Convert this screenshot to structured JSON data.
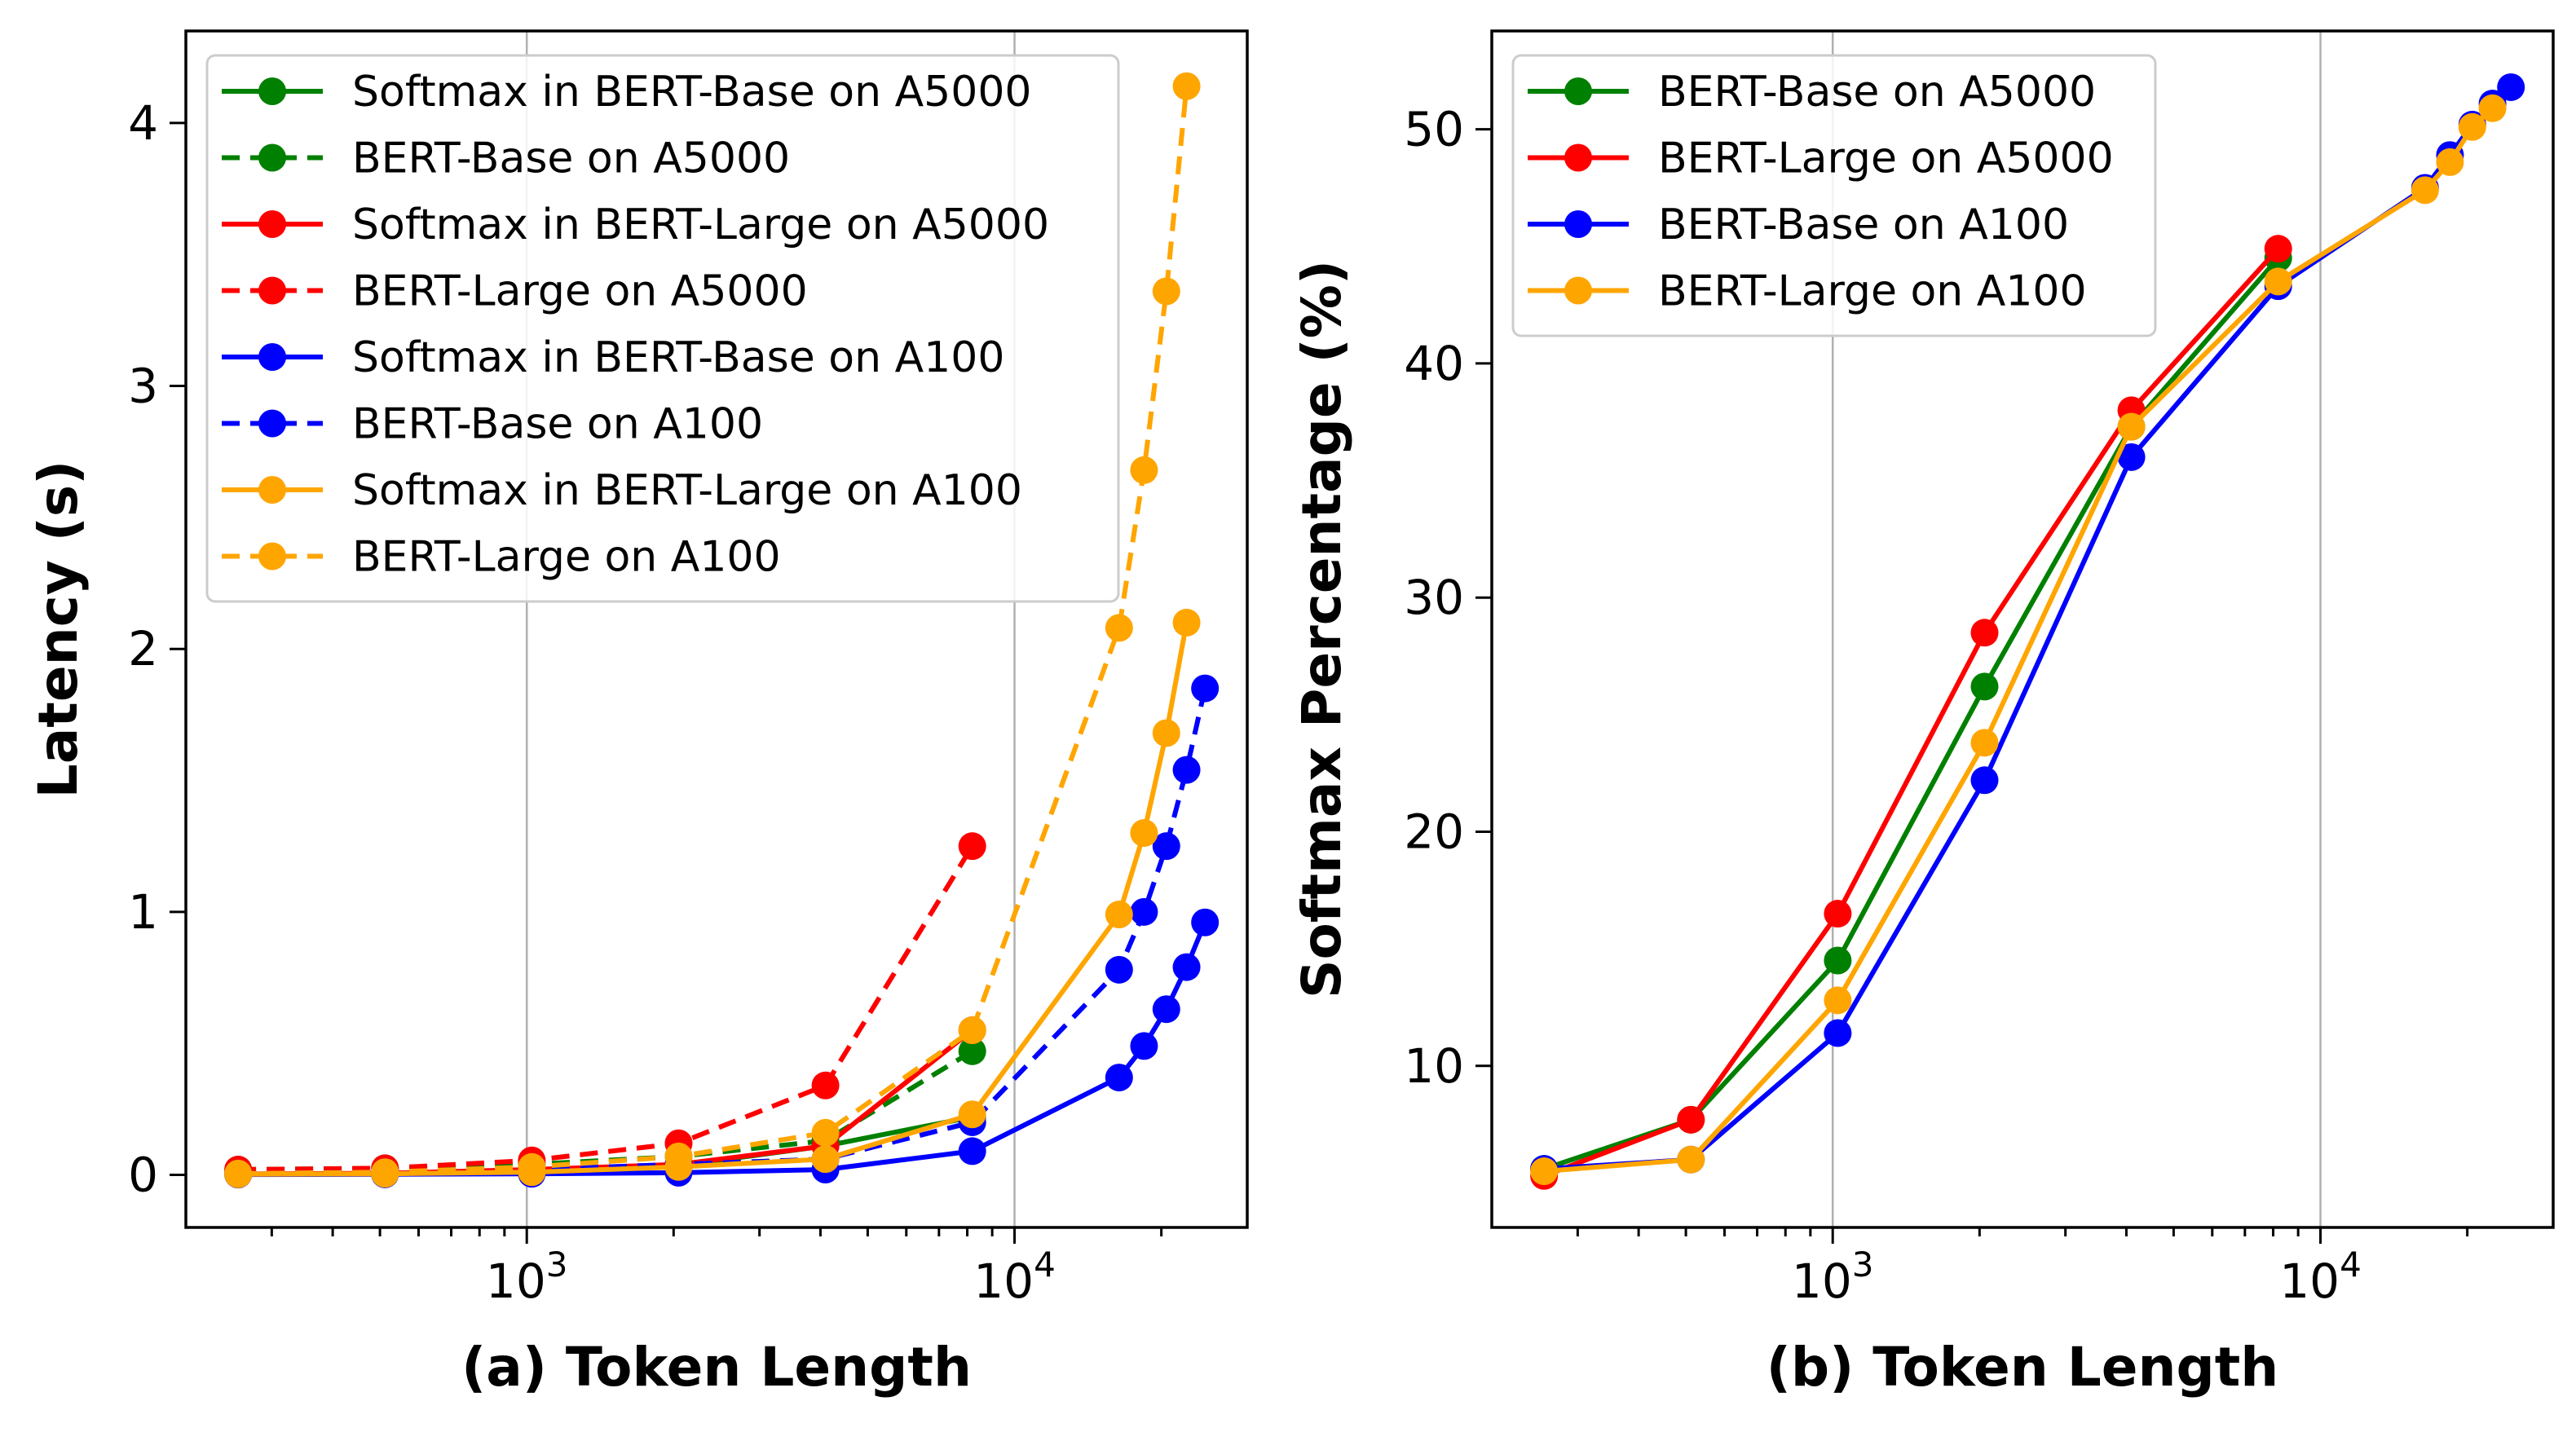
{
  "chart_data": [
    {
      "type": "line",
      "xlabel": "(a) Token Length",
      "ylabel": "Latency (s)",
      "xscale": "log",
      "xlim": [
        200,
        30000
      ],
      "ylim": [
        -0.2,
        4.35
      ],
      "yticks": [
        0,
        1,
        2,
        3,
        4
      ],
      "ytick_labels": [
        "0",
        "1",
        "2",
        "3",
        "4"
      ],
      "xticks_major": [
        1000,
        10000
      ],
      "xtick_labels": [
        {
          "base": "10",
          "exp": "3"
        },
        {
          "base": "10",
          "exp": "4"
        }
      ],
      "grid": "x-major",
      "legend_placement": "upper-left",
      "series": [
        {
          "name": "Softmax in BERT-Base on A5000",
          "color": "#008000",
          "style": "solid",
          "x": [
            256,
            512,
            1024,
            2048,
            4096,
            8192
          ],
          "y": [
            0.002,
            0.004,
            0.012,
            0.035,
            0.11,
            0.22
          ]
        },
        {
          "name": "BERT-Base on A5000",
          "color": "#008000",
          "style": "dashed",
          "x": [
            256,
            512,
            1024,
            2048,
            4096,
            8192
          ],
          "y": [
            0.02,
            0.025,
            0.04,
            0.07,
            0.13,
            0.47
          ]
        },
        {
          "name": "Softmax in BERT-Large on A5000",
          "color": "#ff0000",
          "style": "solid",
          "x": [
            256,
            512,
            1024,
            2048,
            4096,
            8192
          ],
          "y": [
            0.003,
            0.006,
            0.02,
            0.04,
            0.11,
            0.55
          ]
        },
        {
          "name": "BERT-Large on A5000",
          "color": "#ff0000",
          "style": "dashed",
          "x": [
            256,
            512,
            1024,
            2048,
            4096,
            8192
          ],
          "y": [
            0.02,
            0.025,
            0.055,
            0.12,
            0.34,
            1.25
          ]
        },
        {
          "name": "Softmax in BERT-Base on A100",
          "color": "#0000ff",
          "style": "solid",
          "x": [
            256,
            512,
            1024,
            2048,
            4096,
            8192,
            16384,
            18432,
            20480,
            22528,
            24576
          ],
          "y": [
            0.001,
            0.002,
            0.004,
            0.008,
            0.02,
            0.09,
            0.37,
            0.49,
            0.63,
            0.79,
            0.96
          ]
        },
        {
          "name": "BERT-Base on A100",
          "color": "#0000ff",
          "style": "dashed",
          "x": [
            256,
            512,
            1024,
            2048,
            4096,
            8192,
            16384,
            18432,
            20480,
            22528,
            24576
          ],
          "y": [
            0.005,
            0.01,
            0.02,
            0.04,
            0.06,
            0.2,
            0.78,
            1.0,
            1.25,
            1.54,
            1.85
          ]
        },
        {
          "name": "Softmax in BERT-Large on A100",
          "color": "#ffa500",
          "style": "solid",
          "x": [
            256,
            512,
            1024,
            2048,
            4096,
            8192,
            16384,
            18432,
            20480,
            22528
          ],
          "y": [
            0.002,
            0.004,
            0.01,
            0.03,
            0.06,
            0.23,
            0.99,
            1.3,
            1.68,
            2.1
          ]
        },
        {
          "name": "BERT-Large on A100",
          "color": "#ffa500",
          "style": "dashed",
          "x": [
            256,
            512,
            1024,
            2048,
            4096,
            8192,
            16384,
            18432,
            20480,
            22528
          ],
          "y": [
            0.005,
            0.01,
            0.03,
            0.07,
            0.16,
            0.55,
            2.08,
            2.68,
            3.36,
            4.14
          ]
        }
      ]
    },
    {
      "type": "line",
      "xlabel": "(b) Token Length",
      "ylabel": "Softmax Percentage (%)",
      "xscale": "log",
      "xlim": [
        200,
        30000
      ],
      "ylim": [
        3.1,
        54.2
      ],
      "yticks": [
        10,
        20,
        30,
        40,
        50
      ],
      "ytick_labels": [
        "10",
        "20",
        "30",
        "40",
        "50"
      ],
      "xticks_major": [
        1000,
        10000
      ],
      "xtick_labels": [
        {
          "base": "10",
          "exp": "3"
        },
        {
          "base": "10",
          "exp": "4"
        }
      ],
      "grid": "x-major",
      "legend_placement": "upper-left",
      "series": [
        {
          "name": "BERT-Base on A5000",
          "color": "#008000",
          "style": "solid",
          "x": [
            256,
            512,
            1024,
            2048,
            4096,
            8192
          ],
          "y": [
            5.6,
            7.7,
            14.5,
            26.2,
            37.3,
            44.5
          ]
        },
        {
          "name": "BERT-Large on A5000",
          "color": "#ff0000",
          "style": "solid",
          "x": [
            256,
            512,
            1024,
            2048,
            4096,
            8192
          ],
          "y": [
            5.3,
            7.7,
            16.5,
            28.5,
            38.0,
            44.9
          ]
        },
        {
          "name": "BERT-Base on A100",
          "color": "#0000ff",
          "style": "solid",
          "x": [
            256,
            512,
            1024,
            2048,
            4096,
            8192,
            16384,
            18432,
            20480,
            22528,
            24576
          ],
          "y": [
            5.6,
            6.0,
            11.4,
            22.2,
            36.0,
            43.3,
            47.5,
            48.9,
            50.2,
            51.1,
            51.8
          ]
        },
        {
          "name": "BERT-Large on A100",
          "color": "#ffa500",
          "style": "solid",
          "x": [
            256,
            512,
            1024,
            2048,
            4096,
            8192,
            16384,
            18432,
            20480,
            22528
          ],
          "y": [
            5.5,
            6.0,
            12.8,
            23.8,
            37.3,
            43.5,
            47.4,
            48.6,
            50.1,
            50.9
          ]
        }
      ]
    }
  ]
}
